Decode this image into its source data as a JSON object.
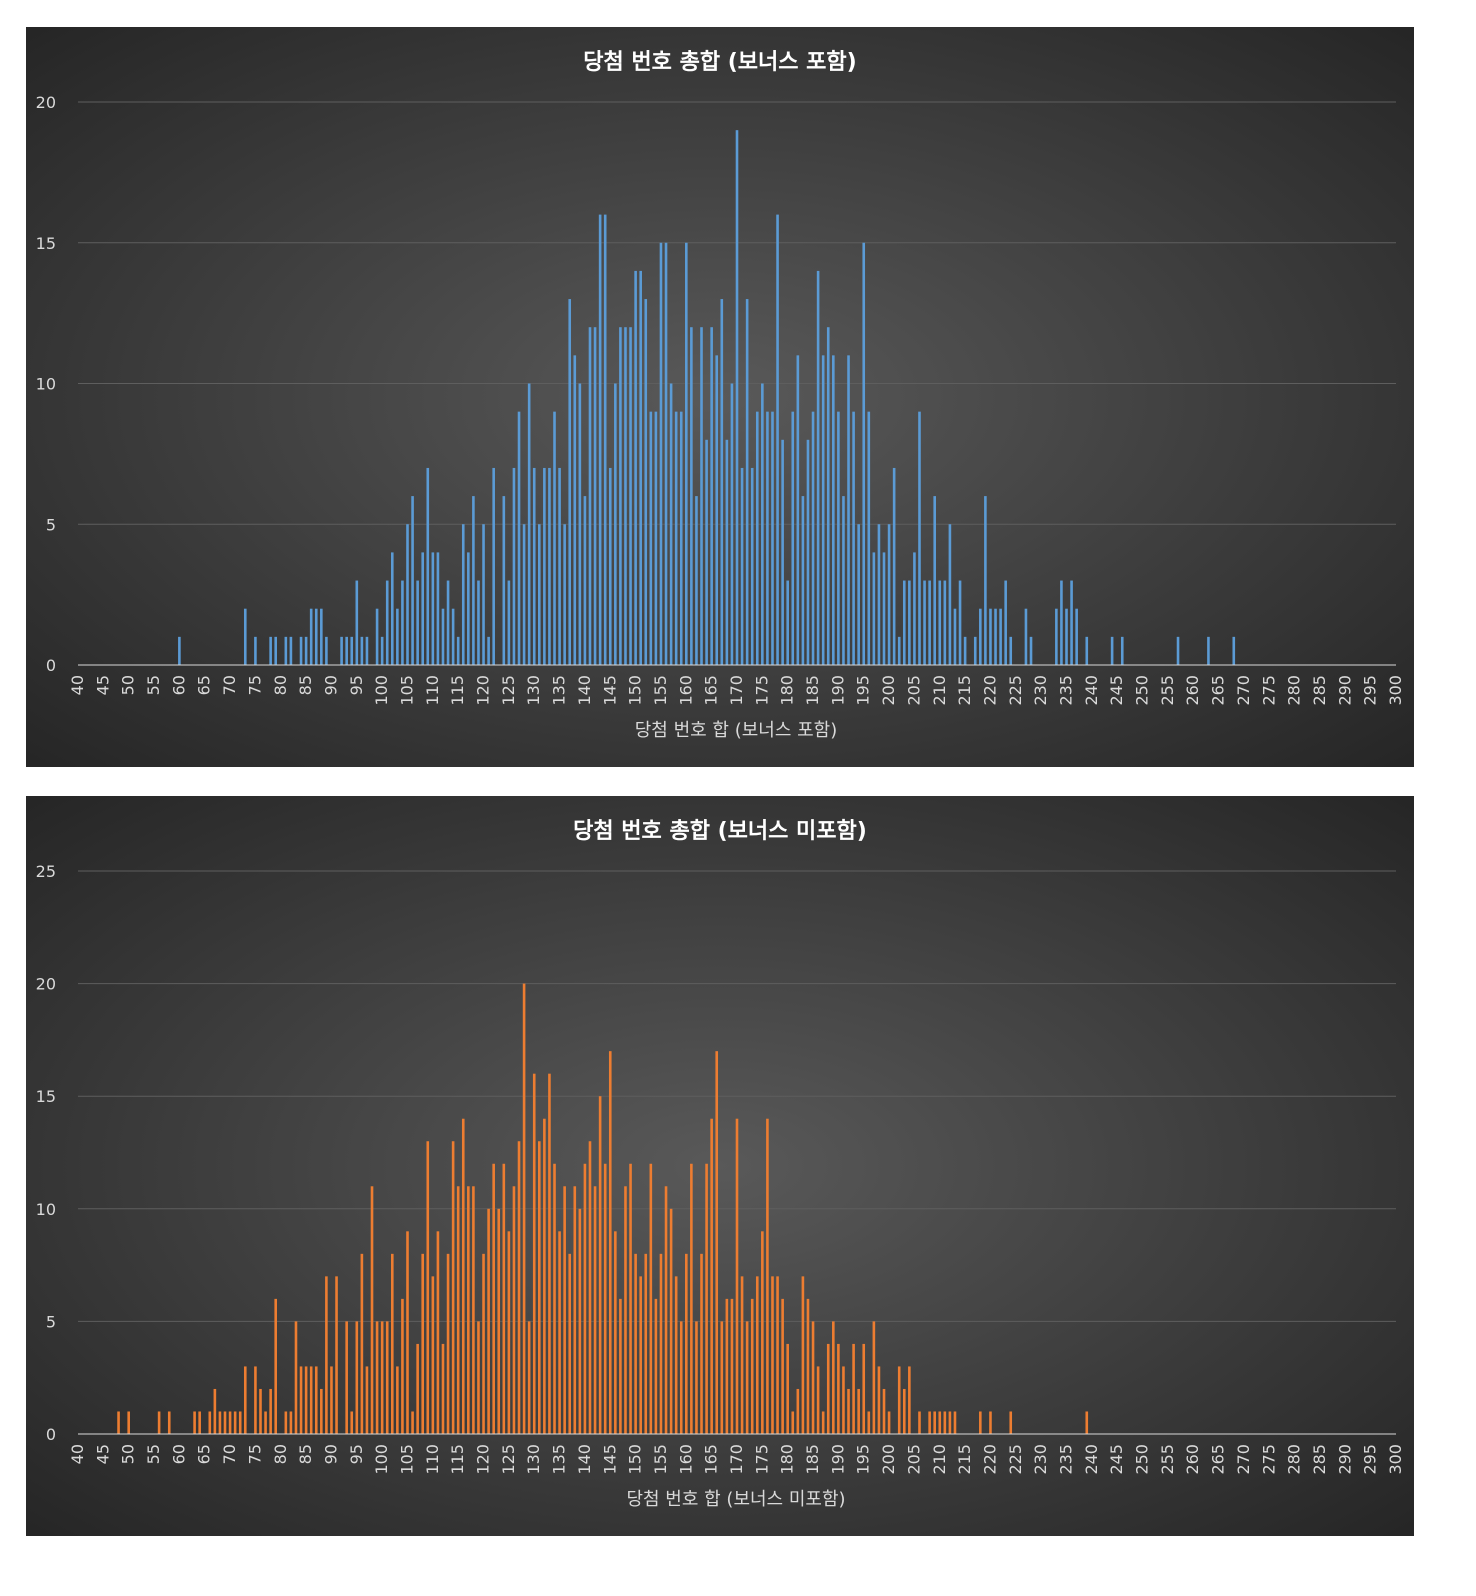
{
  "chart_data": [
    {
      "type": "bar",
      "title": "당첨 번호 총합 (보너스 포함)",
      "x_label": "당첨 번호 합 (보너스 포함)",
      "color": "#5b9bd5",
      "grid": true,
      "xlim": [
        40,
        300
      ],
      "ylim": [
        0,
        20
      ],
      "yticks": [
        0,
        5,
        10,
        15,
        20
      ],
      "xticks": [
        40,
        45,
        50,
        55,
        60,
        65,
        70,
        75,
        80,
        85,
        90,
        95,
        100,
        105,
        110,
        115,
        120,
        125,
        130,
        135,
        140,
        145,
        150,
        155,
        160,
        165,
        170,
        175,
        180,
        185,
        190,
        195,
        200,
        205,
        210,
        215,
        220,
        225,
        230,
        235,
        240,
        245,
        250,
        255,
        260,
        265,
        270,
        275,
        280,
        285,
        290,
        295,
        300
      ],
      "x": [
        60,
        73,
        75,
        78,
        79,
        81,
        82,
        84,
        85,
        86,
        87,
        88,
        89,
        92,
        93,
        94,
        95,
        96,
        97,
        99,
        100,
        101,
        102,
        103,
        104,
        105,
        106,
        107,
        108,
        109,
        110,
        111,
        112,
        113,
        114,
        115,
        116,
        117,
        118,
        119,
        120,
        121,
        122,
        124,
        125,
        126,
        127,
        128,
        129,
        130,
        131,
        132,
        133,
        134,
        135,
        136,
        137,
        138,
        139,
        140,
        141,
        142,
        143,
        144,
        145,
        146,
        147,
        148,
        149,
        150,
        151,
        152,
        153,
        154,
        155,
        156,
        157,
        158,
        159,
        160,
        161,
        162,
        163,
        164,
        165,
        166,
        167,
        168,
        169,
        170,
        171,
        172,
        173,
        174,
        175,
        176,
        177,
        178,
        179,
        180,
        181,
        182,
        183,
        184,
        185,
        186,
        187,
        188,
        189,
        190,
        191,
        192,
        193,
        194,
        195,
        196,
        197,
        198,
        199,
        200,
        201,
        202,
        203,
        204,
        205,
        206,
        207,
        208,
        209,
        210,
        211,
        212,
        213,
        214,
        215,
        217,
        218,
        219,
        220,
        221,
        222,
        223,
        224,
        227,
        228,
        233,
        234,
        235,
        236,
        237,
        239,
        244,
        246,
        257,
        263,
        268
      ],
      "values": [
        1,
        2,
        1,
        1,
        1,
        1,
        1,
        1,
        1,
        2,
        2,
        2,
        1,
        1,
        1,
        1,
        3,
        1,
        1,
        2,
        1,
        3,
        4,
        2,
        3,
        5,
        6,
        3,
        4,
        7,
        4,
        4,
        2,
        3,
        2,
        1,
        5,
        4,
        6,
        3,
        5,
        1,
        7,
        6,
        3,
        7,
        9,
        5,
        10,
        7,
        5,
        7,
        7,
        9,
        7,
        5,
        13,
        11,
        10,
        6,
        12,
        12,
        16,
        16,
        7,
        10,
        12,
        12,
        12,
        14,
        14,
        13,
        9,
        9,
        15,
        15,
        10,
        9,
        9,
        15,
        12,
        6,
        12,
        8,
        12,
        11,
        13,
        8,
        10,
        19,
        7,
        13,
        7,
        9,
        10,
        9,
        9,
        16,
        8,
        3,
        9,
        11,
        6,
        8,
        9,
        14,
        11,
        12,
        11,
        9,
        6,
        11,
        9,
        5,
        15,
        9,
        4,
        5,
        4,
        5,
        7,
        1,
        3,
        3,
        4,
        9,
        3,
        3,
        6,
        3,
        3,
        5,
        2,
        3,
        1,
        1,
        2,
        6,
        2,
        2,
        2,
        3,
        1,
        2,
        1,
        2,
        3,
        2,
        3,
        2,
        1,
        1,
        1,
        1,
        1,
        1
      ]
    },
    {
      "type": "bar",
      "title": "당첨 번호 총합 (보너스 미포함)",
      "x_label": "당첨 번호 합 (보너스 미포함)",
      "color": "#ed7d31",
      "grid": true,
      "xlim": [
        40,
        300
      ],
      "ylim": [
        0,
        25
      ],
      "yticks": [
        0,
        5,
        10,
        15,
        20,
        25
      ],
      "xticks": [
        40,
        45,
        50,
        55,
        60,
        65,
        70,
        75,
        80,
        85,
        90,
        95,
        100,
        105,
        110,
        115,
        120,
        125,
        130,
        135,
        140,
        145,
        150,
        155,
        160,
        165,
        170,
        175,
        180,
        185,
        190,
        195,
        200,
        205,
        210,
        215,
        220,
        225,
        230,
        235,
        240,
        245,
        250,
        255,
        260,
        265,
        270,
        275,
        280,
        285,
        290,
        295,
        300
      ],
      "x": [
        48,
        50,
        56,
        58,
        63,
        64,
        66,
        67,
        68,
        69,
        70,
        71,
        72,
        73,
        75,
        76,
        77,
        78,
        79,
        81,
        82,
        83,
        84,
        85,
        86,
        87,
        88,
        89,
        90,
        91,
        93,
        94,
        95,
        96,
        97,
        98,
        99,
        100,
        101,
        102,
        103,
        104,
        105,
        106,
        107,
        108,
        109,
        110,
        111,
        112,
        113,
        114,
        115,
        116,
        117,
        118,
        119,
        120,
        121,
        122,
        123,
        124,
        125,
        126,
        127,
        128,
        129,
        130,
        131,
        132,
        133,
        134,
        135,
        136,
        137,
        138,
        139,
        140,
        141,
        142,
        143,
        144,
        145,
        146,
        147,
        148,
        149,
        150,
        151,
        152,
        153,
        154,
        155,
        156,
        157,
        158,
        159,
        160,
        161,
        162,
        163,
        164,
        165,
        166,
        167,
        168,
        169,
        170,
        171,
        172,
        173,
        174,
        175,
        176,
        177,
        178,
        179,
        180,
        181,
        182,
        183,
        184,
        185,
        186,
        187,
        188,
        189,
        190,
        191,
        192,
        193,
        194,
        195,
        196,
        197,
        198,
        199,
        200,
        202,
        203,
        204,
        206,
        208,
        209,
        210,
        211,
        212,
        213,
        218,
        220,
        224,
        239
      ],
      "values": [
        1,
        1,
        1,
        1,
        1,
        1,
        1,
        2,
        1,
        1,
        1,
        1,
        1,
        3,
        3,
        2,
        1,
        2,
        6,
        1,
        1,
        5,
        3,
        3,
        3,
        3,
        2,
        7,
        3,
        7,
        5,
        1,
        5,
        8,
        3,
        11,
        5,
        5,
        5,
        8,
        3,
        6,
        9,
        1,
        4,
        8,
        13,
        7,
        9,
        4,
        8,
        13,
        11,
        14,
        11,
        11,
        5,
        8,
        10,
        12,
        10,
        12,
        9,
        11,
        13,
        20,
        5,
        16,
        13,
        14,
        16,
        12,
        9,
        11,
        8,
        11,
        10,
        12,
        13,
        11,
        15,
        12,
        17,
        9,
        6,
        11,
        12,
        8,
        7,
        8,
        12,
        6,
        8,
        11,
        10,
        7,
        5,
        8,
        12,
        5,
        8,
        12,
        14,
        17,
        5,
        6,
        6,
        14,
        7,
        5,
        6,
        7,
        9,
        14,
        7,
        7,
        6,
        4,
        1,
        2,
        7,
        6,
        5,
        3,
        1,
        4,
        5,
        4,
        3,
        2,
        4,
        2,
        4,
        1,
        5,
        3,
        2,
        1,
        3,
        2,
        3,
        1,
        1,
        1,
        1,
        1,
        1,
        1,
        1,
        1,
        1,
        1
      ]
    }
  ]
}
